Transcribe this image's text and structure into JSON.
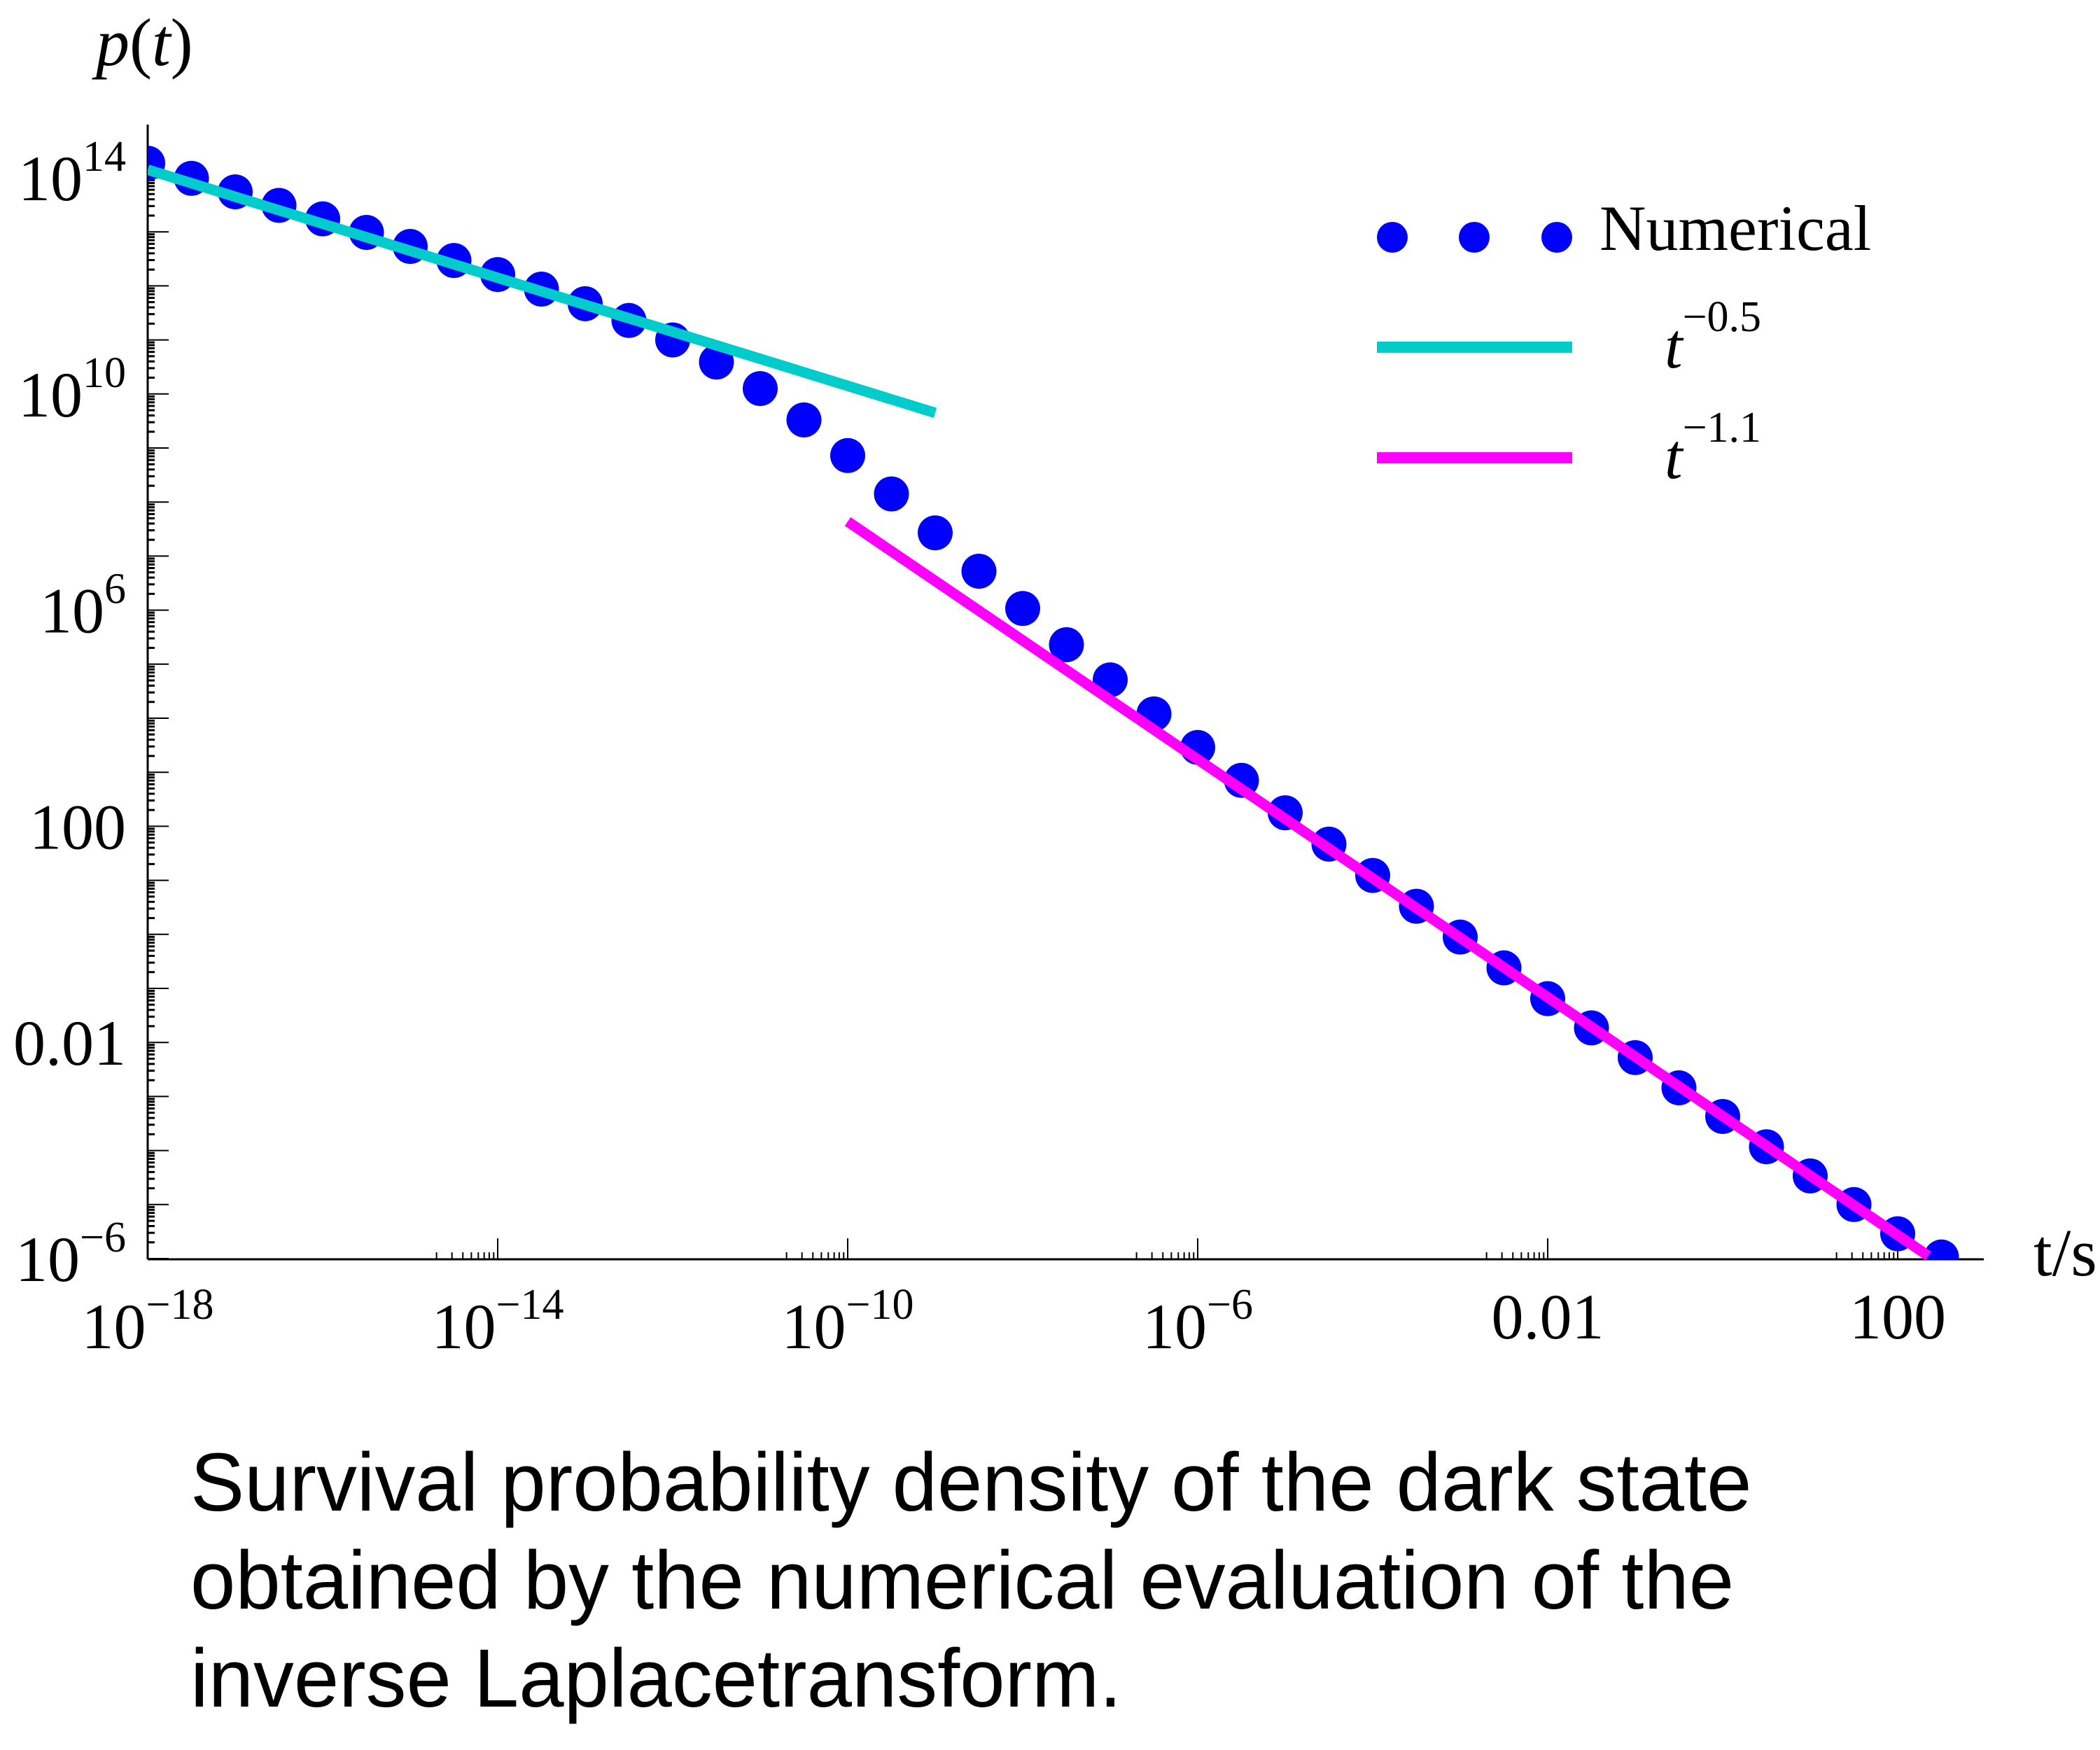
{
  "chart_data": {
    "type": "scatter",
    "title": "",
    "xlabel": "t/s",
    "ylabel": "p(t)",
    "xscale": "log",
    "yscale": "log",
    "xlim": [
      1e-18,
      1000
    ],
    "ylim": [
      1e-06,
      300000000000000.0
    ],
    "grid": false,
    "legend_position": "top-right",
    "x_ticks": [
      {
        "value_log10": -18,
        "base": "10",
        "exp": "−18",
        "plain": ""
      },
      {
        "value_log10": -14,
        "base": "10",
        "exp": "−14",
        "plain": ""
      },
      {
        "value_log10": -10,
        "base": "10",
        "exp": "−10",
        "plain": ""
      },
      {
        "value_log10": -6,
        "base": "10",
        "exp": "−6",
        "plain": ""
      },
      {
        "value_log10": -2,
        "base": "",
        "exp": "",
        "plain": "0.01"
      },
      {
        "value_log10": 2,
        "base": "",
        "exp": "",
        "plain": "100"
      }
    ],
    "y_ticks": [
      {
        "value_log10": 14,
        "base": "10",
        "exp": "14",
        "plain": ""
      },
      {
        "value_log10": 10,
        "base": "10",
        "exp": "10",
        "plain": ""
      },
      {
        "value_log10": 6,
        "base": "10",
        "exp": "6",
        "plain": ""
      },
      {
        "value_log10": 2,
        "base": "",
        "exp": "",
        "plain": "100"
      },
      {
        "value_log10": -2,
        "base": "",
        "exp": "",
        "plain": "0.01"
      },
      {
        "value_log10": -6,
        "base": "10",
        "exp": "−6",
        "plain": ""
      }
    ],
    "series": [
      {
        "name": "Numerical",
        "kind": "points",
        "color": "#0000FF",
        "log10_t": [
          -18,
          -17.5,
          -17,
          -16.5,
          -16,
          -15.5,
          -15,
          -14.5,
          -14,
          -13.5,
          -13,
          -12.5,
          -12,
          -11.5,
          -11,
          -10.5,
          -10,
          -9.5,
          -9,
          -8.5,
          -8,
          -7.5,
          -7,
          -6.5,
          -6,
          -5.5,
          -5,
          -4.5,
          -4,
          -3.5,
          -3,
          -2.5,
          -2,
          -1.5,
          -1,
          -0.5,
          0,
          0.5,
          1,
          1.5,
          2,
          2.5
        ],
        "log10_p": [
          14.27,
          13.99,
          13.74,
          13.49,
          13.24,
          12.99,
          12.73,
          12.47,
          12.21,
          11.94,
          11.67,
          11.36,
          11.0,
          10.59,
          10.1,
          9.52,
          8.86,
          8.15,
          7.43,
          6.72,
          6.03,
          5.36,
          4.71,
          4.08,
          3.46,
          2.85,
          2.25,
          1.67,
          1.09,
          0.52,
          -0.05,
          -0.62,
          -1.19,
          -1.73,
          -2.28,
          -2.84,
          -3.37,
          -3.93,
          -4.47,
          -5.0,
          -5.54,
          -5.97
        ]
      },
      {
        "name": "t^-0.5",
        "label_base": "t",
        "label_exp": "−0.5",
        "kind": "line",
        "color": "#00CCCC",
        "exponent": -0.5,
        "log10_t": [
          -18,
          -9
        ],
        "log10_p": [
          14.15,
          9.65
        ]
      },
      {
        "name": "t^-1.1",
        "label_base": "t",
        "label_exp": "−1.1",
        "kind": "line",
        "color": "#FF00FF",
        "exponent": -1.1,
        "log10_t": [
          -10,
          2.35
        ],
        "log10_p": [
          7.64,
          -5.95
        ]
      }
    ]
  },
  "axis": {
    "ylabel_p": "p",
    "ylabel_open": "(",
    "ylabel_t": "t",
    "ylabel_close": ")",
    "xlabel": "t/s"
  },
  "legend": {
    "numerical": "Numerical",
    "fit1_base": "t",
    "fit1_exp": "−0.5",
    "fit2_base": "t",
    "fit2_exp": "−1.1"
  },
  "caption": {
    "lines": [
      "Survival probability density of the dark state",
      "obtained by the numerical evaluation of the",
      "inverse Laplacetransform."
    ]
  }
}
